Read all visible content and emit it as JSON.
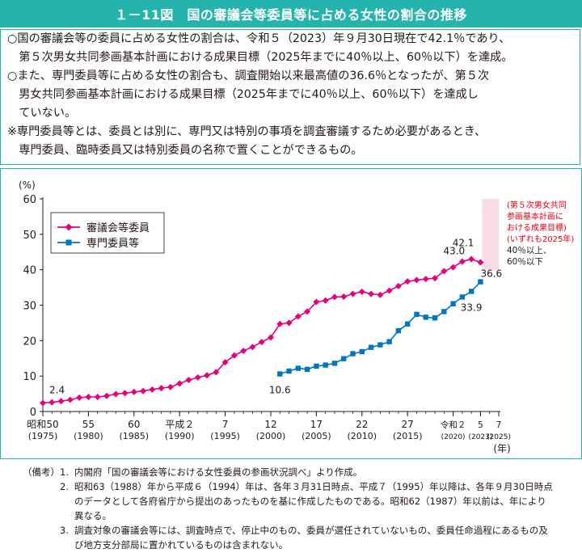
{
  "title": "１－11図　国の審議会等委員等に占める女性の割合の推移",
  "summary": {
    "lines": [
      "○国の審議会等の委員に占める女性の割合は、令和５（2023）年９月30日現在で42.1％であり、",
      "　第５次男女共同参画基本計画における成果目標（2025年までに40％以上、60％以下）を達成。",
      "○また、専門委員等に占める女性の割合も、調査開始以来最高値の36.6％となったが、第５次",
      "　男女共同参画基本計画における成果目標（2025年までに40％以上、60％以下）を達成し",
      "　ていない。",
      "※専門委員等とは、委員とは別に、専門又は特別の事項を調査審議するため必要があるとき、",
      "　専門委員、臨時委員又は特別委員の名称で置くことができるもの。"
    ]
  },
  "chart_data": {
    "type": "line",
    "ylabel": "(%)",
    "xlabel": "(年)",
    "ylim": [
      0,
      60
    ],
    "yticks": [
      "0",
      "10",
      "20",
      "30",
      "40",
      "50",
      "60"
    ],
    "xlim": [
      1975,
      2025
    ],
    "xticks": [
      {
        "year": 1975,
        "label1": "昭和50",
        "label2": "(1975)"
      },
      {
        "year": 1980,
        "label1": "55",
        "label2": "(1980)"
      },
      {
        "year": 1985,
        "label1": "60",
        "label2": "(1985)"
      },
      {
        "year": 1990,
        "label1": "平成２",
        "label2": "(1990)"
      },
      {
        "year": 1995,
        "label1": "7",
        "label2": "(1995)"
      },
      {
        "year": 2000,
        "label1": "12",
        "label2": "(2000)"
      },
      {
        "year": 2005,
        "label1": "17",
        "label2": "(2005)"
      },
      {
        "year": 2010,
        "label1": "22",
        "label2": "(2010)"
      },
      {
        "year": 2015,
        "label1": "27",
        "label2": "(2015)"
      },
      {
        "year": 2020,
        "label1": "令和２",
        "label2": "(2020)"
      },
      {
        "year": 2023,
        "label1": "5",
        "label2": "(2023)"
      },
      {
        "year": 2025,
        "label1": "7",
        "label2": "(2025)"
      }
    ],
    "legend_position": "top-left",
    "series": [
      {
        "name": "審議会等委員",
        "color": "#e4007f",
        "marker": "diamond",
        "x": [
          1975,
          1976,
          1977,
          1978,
          1979,
          1980,
          1981,
          1982,
          1983,
          1984,
          1985,
          1986,
          1987,
          1988,
          1989,
          1990,
          1991,
          1992,
          1993,
          1994,
          1995,
          1996,
          1997,
          1998,
          1999,
          2000,
          2001,
          2002,
          2003,
          2004,
          2005,
          2006,
          2007,
          2008,
          2009,
          2010,
          2011,
          2012,
          2013,
          2014,
          2015,
          2016,
          2017,
          2018,
          2019,
          2020,
          2021,
          2022,
          2023
        ],
        "y": [
          2.4,
          2.6,
          2.9,
          3.3,
          3.9,
          4.1,
          4.1,
          4.4,
          4.9,
          5.2,
          5.5,
          5.8,
          6.2,
          6.6,
          6.9,
          7.9,
          8.9,
          9.6,
          10.2,
          11.1,
          13.9,
          15.8,
          17.1,
          18.2,
          19.6,
          20.9,
          24.7,
          25.0,
          26.8,
          28.2,
          30.9,
          31.3,
          32.3,
          32.4,
          33.2,
          33.8,
          33.2,
          32.9,
          34.1,
          35.4,
          36.7,
          37.1,
          37.4,
          37.6,
          39.6,
          40.7,
          42.3,
          43.0,
          42.1
        ],
        "data_labels": [
          {
            "year": 1975,
            "text": "2.4"
          },
          {
            "year": 2022,
            "text": "43.0"
          },
          {
            "year": 2023,
            "text": "42.1"
          }
        ]
      },
      {
        "name": "専門委員等",
        "color": "#0075c2",
        "marker": "square",
        "x": [
          2001,
          2002,
          2003,
          2004,
          2005,
          2006,
          2007,
          2008,
          2009,
          2010,
          2011,
          2012,
          2013,
          2014,
          2015,
          2016,
          2017,
          2018,
          2019,
          2020,
          2021,
          2022,
          2023
        ],
        "y": [
          10.6,
          11.4,
          12.2,
          11.9,
          12.8,
          13.1,
          13.6,
          14.9,
          16.3,
          16.9,
          18.1,
          18.8,
          19.7,
          22.8,
          24.7,
          27.4,
          26.6,
          26.4,
          28.2,
          30.4,
          32.3,
          33.9,
          36.6
        ],
        "data_labels": [
          {
            "year": 2001,
            "text": "10.6"
          },
          {
            "year": 2022,
            "text": "33.9"
          },
          {
            "year": 2023,
            "text": "36.6"
          }
        ]
      }
    ],
    "target": {
      "range": [
        40,
        60
      ],
      "from_year": 2023,
      "to_year": 2025,
      "fill": "#f9dde6",
      "note_lines": [
        "(第５次男女共同",
        "参画基本計画に",
        "おける成果目標)",
        "(いずれも2025年)"
      ],
      "note_color": "#e60012",
      "range_lines": [
        "40％以上、",
        "60％以下"
      ]
    }
  },
  "notes": {
    "prefix": "（備考）",
    "items": [
      {
        "num": "1.",
        "lines": [
          "内閣府「国の審議会等における女性委員の参画状況調べ」より作成。"
        ]
      },
      {
        "num": "2.",
        "lines": [
          "昭和63（1988）年から平成６（1994）年は、各年３月31日時点、平成７（1995）年以降は、各年９月30日時点",
          "のデータとして各府省庁から提出のあったものを基に作成したものである。昭和62（1987）年以前は、年により",
          "異なる。"
        ]
      },
      {
        "num": "3.",
        "lines": [
          "調査対象の審議会等には、調査時点で、停止中のもの、委員が選任されていないもの、委員任命過程にあるもの及",
          "び地方支分部局に置かれているものは含まれない。"
        ]
      }
    ]
  }
}
